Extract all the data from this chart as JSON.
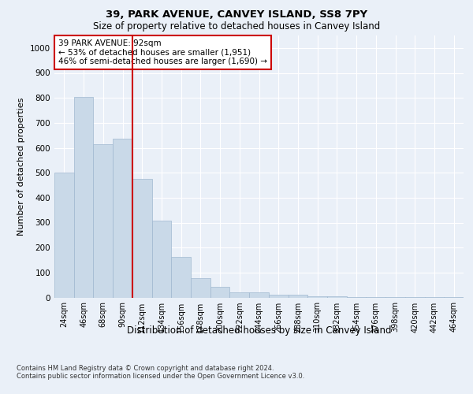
{
  "title1": "39, PARK AVENUE, CANVEY ISLAND, SS8 7PY",
  "title2": "Size of property relative to detached houses in Canvey Island",
  "xlabel": "Distribution of detached houses by size in Canvey Island",
  "ylabel": "Number of detached properties",
  "footnote": "Contains HM Land Registry data © Crown copyright and database right 2024.\nContains public sector information licensed under the Open Government Licence v3.0.",
  "bar_labels": [
    "24sqm",
    "46sqm",
    "68sqm",
    "90sqm",
    "112sqm",
    "134sqm",
    "156sqm",
    "178sqm",
    "200sqm",
    "222sqm",
    "244sqm",
    "266sqm",
    "288sqm",
    "310sqm",
    "332sqm",
    "354sqm",
    "376sqm",
    "398sqm",
    "420sqm",
    "442sqm",
    "464sqm"
  ],
  "bar_values": [
    500,
    805,
    615,
    635,
    475,
    308,
    163,
    78,
    43,
    22,
    22,
    12,
    10,
    5,
    4,
    2,
    2,
    1,
    1,
    1,
    2
  ],
  "bar_color": "#c9d9e8",
  "bar_edge_color": "#a0b8d0",
  "vline_x": 3.5,
  "vline_color": "#cc0000",
  "ylim": [
    0,
    1050
  ],
  "yticks": [
    0,
    100,
    200,
    300,
    400,
    500,
    600,
    700,
    800,
    900,
    1000
  ],
  "annotation_text": "39 PARK AVENUE: 92sqm\n← 53% of detached houses are smaller (1,951)\n46% of semi-detached houses are larger (1,690) →",
  "annotation_box_color": "#ffffff",
  "annotation_box_edge": "#cc0000",
  "bg_color": "#eaf0f8",
  "plot_bg_color": "#eaf0f8",
  "grid_color": "#ffffff"
}
